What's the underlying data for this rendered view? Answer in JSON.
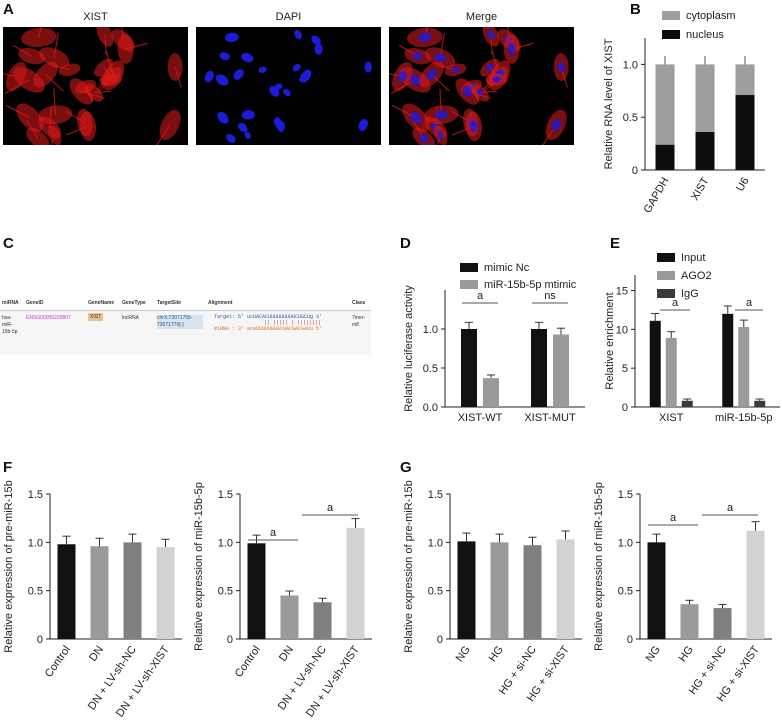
{
  "panels": {
    "A": "A",
    "B": "B",
    "C": "C",
    "D": "D",
    "E": "E",
    "F": "F",
    "G": "G"
  },
  "micro_titles": [
    "XIST",
    "DAPI",
    "Merge"
  ],
  "colors": {
    "black": "#111111",
    "gray": "#9a9a9c",
    "dark_gray": "#7f7f7f",
    "light_gray": "#d2d2d2",
    "red_stain": "#e01a1a",
    "blue_stain": "#1c1cd8"
  },
  "table": {
    "headers": [
      "miRNA",
      "GeneID",
      "GeneName",
      "GeneType",
      "TargetSite",
      "Alignment",
      "Class"
    ],
    "row": {
      "mirna": "hsa-miR-15b-5p",
      "geneid": "ENSG00000229807",
      "genename": "XIST",
      "genetype": "lncRNA",
      "targetsite": "chrX:73071755-73071776[-]",
      "target_line": "Target: 5' ucUACACUUUUUUUUGCUGCUg 3'",
      "pair_line": "|| ||||| |  ||||||||",
      "mirna_line": "miRNA : 3' acAUUUUUGUACUACGACGAUu 5'",
      "class": "7mer-m8"
    }
  },
  "chart_data": [
    {
      "id": "B",
      "type": "bar",
      "stacked": true,
      "categories": [
        "GAPDH",
        "XIST",
        "U6"
      ],
      "series": [
        {
          "name": "cytoplasm",
          "values": [
            0.76,
            0.64,
            0.29
          ]
        },
        {
          "name": "nucleus",
          "values": [
            0.24,
            0.36,
            0.71
          ]
        }
      ],
      "ylabel": "Relative RNA level of XIST",
      "ylim": [
        0,
        1.25
      ],
      "yticks": [
        0,
        0.5,
        1.0
      ],
      "ytick_labels": [
        "0",
        "0.5",
        "1.0"
      ],
      "legend": "top"
    },
    {
      "id": "D",
      "type": "bar",
      "categories": [
        "XIST-WT",
        "XIST-MUT"
      ],
      "series": [
        {
          "name": "mimic Nc",
          "values": [
            1.0,
            1.0
          ]
        },
        {
          "name": "miR-15b-5p mtimic",
          "values": [
            0.37,
            0.93
          ]
        }
      ],
      "ylabel": "Relative luciferase activity",
      "ylim": [
        0,
        1.5
      ],
      "yticks": [
        0,
        0.5,
        1.0
      ],
      "ytick_labels": [
        "0.0",
        "0.5",
        "1.0"
      ],
      "annotations": [
        "a",
        "ns"
      ],
      "legend": "top"
    },
    {
      "id": "E",
      "type": "bar",
      "categories": [
        "XIST",
        "miR-15b-5p"
      ],
      "series": [
        {
          "name": "Input",
          "values": [
            11.1,
            12.0
          ]
        },
        {
          "name": "AGO2",
          "values": [
            8.9,
            10.3
          ]
        },
        {
          "name": "IgG",
          "values": [
            0.8,
            0.8
          ]
        }
      ],
      "ylabel": "Relative enrichment",
      "ylim": [
        0,
        17
      ],
      "yticks": [
        0,
        5,
        10,
        15
      ],
      "ytick_labels": [
        "0",
        "5",
        "10",
        "15"
      ],
      "annotations": [
        "a",
        "a"
      ],
      "legend": "top"
    },
    {
      "id": "F1",
      "type": "bar",
      "categories": [
        "Control",
        "DN",
        "DN + LV-sh-NC",
        "DN + LV-sh-XIST"
      ],
      "values": [
        0.98,
        0.96,
        1.0,
        0.95
      ],
      "ylabel": "Relative expression of pre-miR-15b",
      "ylim": [
        0,
        1.5
      ],
      "yticks": [
        0,
        0.5,
        1.0,
        1.5
      ],
      "ytick_labels": [
        "0",
        "0.5",
        "1.0",
        "1.5"
      ]
    },
    {
      "id": "F2",
      "type": "bar",
      "categories": [
        "Control",
        "DN",
        "DN + LV-sh-NC",
        "DN + LV-sh-XIST"
      ],
      "values": [
        0.99,
        0.45,
        0.38,
        1.15
      ],
      "ylabel": "Relative expression of miR-15b-5p",
      "ylim": [
        0,
        1.5
      ],
      "yticks": [
        0,
        0.5,
        1.0,
        1.5
      ],
      "ytick_labels": [
        "0",
        "0.5",
        "1.0",
        "1.5"
      ],
      "annotations": [
        "a",
        "a"
      ]
    },
    {
      "id": "G1",
      "type": "bar",
      "categories": [
        "NG",
        "HG",
        "HG + si-NC",
        "HG + si-XIST"
      ],
      "values": [
        1.01,
        1.0,
        0.97,
        1.03
      ],
      "ylabel": "Relative expression of pre-miR-15b",
      "ylim": [
        0,
        1.5
      ],
      "yticks": [
        0,
        0.5,
        1.0,
        1.5
      ],
      "ytick_labels": [
        "0",
        "0.5",
        "1.0",
        "1.5"
      ]
    },
    {
      "id": "G2",
      "type": "bar",
      "categories": [
        "NG",
        "HG",
        "HG + si-NC",
        "HG + si-XIST"
      ],
      "values": [
        1.0,
        0.36,
        0.32,
        1.12
      ],
      "ylabel": "Relative expression of miR-15b-5p",
      "ylim": [
        0,
        1.5
      ],
      "yticks": [
        0,
        0.5,
        1.0,
        1.5
      ],
      "ytick_labels": [
        "0",
        "0.5",
        "1.0",
        "1.5"
      ],
      "annotations": [
        "a",
        "a"
      ]
    }
  ]
}
